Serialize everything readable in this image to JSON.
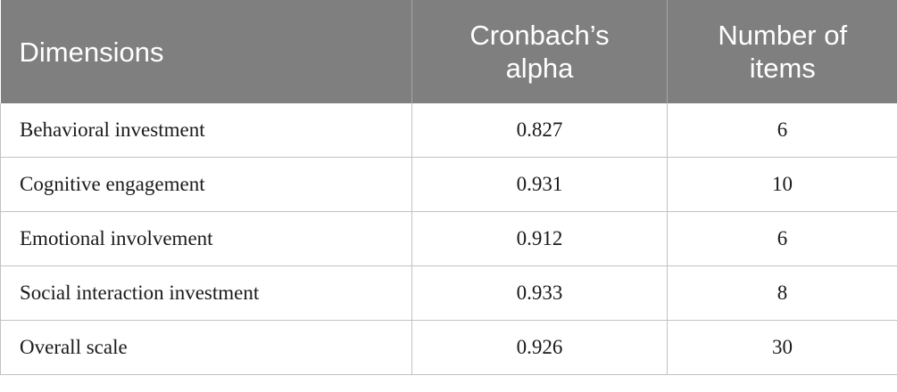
{
  "table": {
    "headers": [
      {
        "line1": "Dimensions",
        "line2": ""
      },
      {
        "line1": "Cronbach’s",
        "line2": "alpha"
      },
      {
        "line1": "Number of",
        "line2": "items"
      }
    ],
    "rows": [
      {
        "dimension": "Behavioral investment",
        "alpha": "0.827",
        "items": "6"
      },
      {
        "dimension": "Cognitive engagement",
        "alpha": "0.931",
        "items": "10"
      },
      {
        "dimension": "Emotional involvement",
        "alpha": "0.912",
        "items": "6"
      },
      {
        "dimension": "Social interaction investment",
        "alpha": "0.933",
        "items": "8"
      },
      {
        "dimension": "Overall scale",
        "alpha": "0.926",
        "items": "30"
      }
    ]
  }
}
